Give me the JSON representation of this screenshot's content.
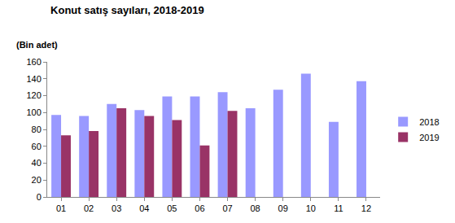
{
  "chart_data": {
    "type": "bar",
    "title": "Konut satış sayıları, 2018-2019",
    "y_label": "(Bin adet)",
    "categories": [
      "01",
      "02",
      "03",
      "04",
      "05",
      "06",
      "07",
      "08",
      "09",
      "10",
      "11",
      "12"
    ],
    "series": [
      {
        "name": "2018",
        "color": "#9999ff",
        "values": [
          97,
          96,
          110,
          103,
          119,
          119,
          124,
          105,
          127,
          146,
          89,
          137
        ]
      },
      {
        "name": "2019",
        "color": "#993366",
        "values": [
          73,
          78,
          105,
          96,
          91,
          61,
          102,
          null,
          null,
          null,
          null,
          null
        ]
      }
    ],
    "ylim": [
      0,
      160
    ],
    "yticks": [
      0,
      20,
      40,
      60,
      80,
      100,
      120,
      140,
      160
    ],
    "grid": false,
    "legend": "right"
  }
}
